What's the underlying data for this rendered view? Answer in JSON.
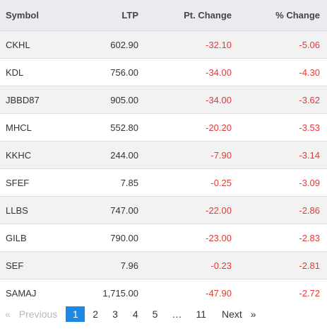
{
  "table": {
    "headers": {
      "symbol": "Symbol",
      "ltp": "LTP",
      "pt_change": "Pt. Change",
      "pct_change": "% Change"
    },
    "rows": [
      {
        "symbol": "CKHL",
        "ltp": "602.90",
        "pt": "-32.10",
        "pct": "-5.06"
      },
      {
        "symbol": "KDL",
        "ltp": "756.00",
        "pt": "-34.00",
        "pct": "-4.30"
      },
      {
        "symbol": "JBBD87",
        "ltp": "905.00",
        "pt": "-34.00",
        "pct": "-3.62"
      },
      {
        "symbol": "MHCL",
        "ltp": "552.80",
        "pt": "-20.20",
        "pct": "-3.53"
      },
      {
        "symbol": "KKHC",
        "ltp": "244.00",
        "pt": "-7.90",
        "pct": "-3.14"
      },
      {
        "symbol": "SFEF",
        "ltp": "7.85",
        "pt": "-0.25",
        "pct": "-3.09"
      },
      {
        "symbol": "LLBS",
        "ltp": "747.00",
        "pt": "-22.00",
        "pct": "-2.86"
      },
      {
        "symbol": "GILB",
        "ltp": "790.00",
        "pt": "-23.00",
        "pct": "-2.83"
      },
      {
        "symbol": "SEF",
        "ltp": "7.96",
        "pt": "-0.23",
        "pct": "-2.81"
      },
      {
        "symbol": "SAMAJ",
        "ltp": "1,715.00",
        "pt": "-47.90",
        "pct": "-2.72"
      }
    ]
  },
  "pagination": {
    "first_symbol": "«",
    "previous_label": "Previous",
    "pages": [
      "1",
      "2",
      "3",
      "4",
      "5"
    ],
    "current_page": "1",
    "ellipsis": "…",
    "last_page": "11",
    "next_label": "Next",
    "last_symbol": "»"
  },
  "colors": {
    "negative": "#e53935",
    "active_page": "#1e88e5",
    "header_bg": "#e9ebee",
    "alt_row_bg": "#f2f2f2"
  }
}
